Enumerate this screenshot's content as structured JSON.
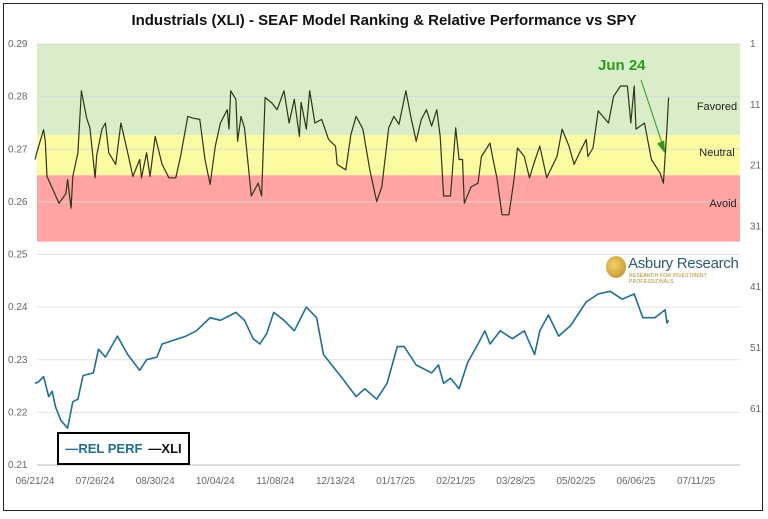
{
  "chart_data": {
    "type": "line",
    "title": "Industrials (XLI) - SEAF Model Ranking & Relative Performance vs SPY",
    "x_ticks": [
      "06/21/24",
      "07/26/24",
      "08/30/24",
      "10/04/24",
      "11/08/24",
      "12/13/24",
      "01/17/25",
      "02/21/25",
      "03/28/25",
      "05/02/25",
      "06/06/25",
      "07/11/25"
    ],
    "x_range": [
      "2024-06-21",
      "2025-07-11"
    ],
    "y_left": {
      "range": [
        0.21,
        0.29
      ],
      "ticks": [
        "0.21",
        "0.22",
        "0.23",
        "0.24",
        "0.25",
        "0.26",
        "0.27",
        "0.28",
        "0.29"
      ]
    },
    "y_right": {
      "range": [
        1,
        69
      ],
      "inverted": true,
      "ticks": [
        "1",
        "11",
        "21",
        "31",
        "41",
        "51",
        "61"
      ]
    },
    "grid": true,
    "legend_position": "bottom-left",
    "bands": [
      {
        "label": "Favored",
        "from_rank": 1,
        "to_rank": 16,
        "color": "#d8edc8"
      },
      {
        "label": "Neutral",
        "from_rank": 16,
        "to_rank": 22.6,
        "color": "#fdfba0"
      },
      {
        "label": "Avoid",
        "from_rank": 22.6,
        "to_rank": 33.5,
        "color": "#ffa3a3"
      }
    ],
    "annotation": {
      "text": "Jun 24",
      "date": "2025-06-23",
      "color": "#2c9a1e"
    },
    "series": [
      {
        "name": "REL PERF",
        "axis": "left",
        "color": "#1f6e96",
        "points": [
          [
            "2024-06-21",
            0.2255
          ],
          [
            "2024-06-23",
            0.2258
          ],
          [
            "2024-06-26",
            0.2268
          ],
          [
            "2024-06-29",
            0.223
          ],
          [
            "2024-07-01",
            0.224
          ],
          [
            "2024-07-03",
            0.221
          ],
          [
            "2024-07-06",
            0.2185
          ],
          [
            "2024-07-10",
            0.217
          ],
          [
            "2024-07-13",
            0.222
          ],
          [
            "2024-07-16",
            0.2225
          ],
          [
            "2024-07-19",
            0.227
          ],
          [
            "2024-07-25",
            0.2275
          ],
          [
            "2024-07-28",
            0.232
          ],
          [
            "2024-08-01",
            0.2305
          ],
          [
            "2024-08-08",
            0.2345
          ],
          [
            "2024-08-14",
            0.231
          ],
          [
            "2024-08-21",
            0.228
          ],
          [
            "2024-08-25",
            0.23
          ],
          [
            "2024-08-31",
            0.2305
          ],
          [
            "2024-09-03",
            0.233
          ],
          [
            "2024-09-08",
            0.2335
          ],
          [
            "2024-09-17",
            0.2345
          ],
          [
            "2024-09-23",
            0.2355
          ],
          [
            "2024-10-01",
            0.238
          ],
          [
            "2024-10-07",
            0.2375
          ],
          [
            "2024-10-16",
            0.239
          ],
          [
            "2024-10-21",
            0.2375
          ],
          [
            "2024-10-26",
            0.234
          ],
          [
            "2024-10-30",
            0.233
          ],
          [
            "2024-11-03",
            0.235
          ],
          [
            "2024-11-07",
            0.239
          ],
          [
            "2024-11-13",
            0.2375
          ],
          [
            "2024-11-19",
            0.2355
          ],
          [
            "2024-11-26",
            0.24
          ],
          [
            "2024-12-02",
            0.238
          ],
          [
            "2024-12-06",
            0.231
          ],
          [
            "2024-12-12",
            0.2285
          ],
          [
            "2024-12-17",
            0.2265
          ],
          [
            "2024-12-25",
            0.223
          ],
          [
            "2024-12-30",
            0.2245
          ],
          [
            "2025-01-06",
            0.2225
          ],
          [
            "2025-01-12",
            0.2255
          ],
          [
            "2025-01-18",
            0.2325
          ],
          [
            "2025-01-22",
            0.2325
          ],
          [
            "2025-01-29",
            0.229
          ],
          [
            "2025-02-07",
            0.2275
          ],
          [
            "2025-02-11",
            0.229
          ],
          [
            "2025-02-14",
            0.2255
          ],
          [
            "2025-02-18",
            0.2265
          ],
          [
            "2025-02-23",
            0.2245
          ],
          [
            "2025-02-28",
            0.2295
          ],
          [
            "2025-03-06",
            0.233
          ],
          [
            "2025-03-10",
            0.2355
          ],
          [
            "2025-03-13",
            0.233
          ],
          [
            "2025-03-19",
            0.2355
          ],
          [
            "2025-03-26",
            0.234
          ],
          [
            "2025-04-02",
            0.2355
          ],
          [
            "2025-04-08",
            0.231
          ],
          [
            "2025-04-11",
            0.2355
          ],
          [
            "2025-04-16",
            0.2385
          ],
          [
            "2025-04-22",
            0.2345
          ],
          [
            "2025-04-29",
            0.2365
          ],
          [
            "2025-05-08",
            0.241
          ],
          [
            "2025-05-15",
            0.2425
          ],
          [
            "2025-05-22",
            0.243
          ],
          [
            "2025-05-29",
            0.2415
          ],
          [
            "2025-06-05",
            0.2425
          ],
          [
            "2025-06-10",
            0.238
          ],
          [
            "2025-06-17",
            0.238
          ],
          [
            "2025-06-23",
            0.2395
          ],
          [
            "2025-06-24",
            0.237
          ],
          [
            "2025-06-25",
            0.2375
          ]
        ]
      },
      {
        "name": "XLI",
        "axis": "right",
        "color": "#2e3518",
        "points": [
          [
            "2024-06-21",
            20
          ],
          [
            "2024-06-22",
            18.9
          ],
          [
            "2024-06-26",
            15.1
          ],
          [
            "2024-06-27",
            17
          ],
          [
            "2024-06-28",
            22.8
          ],
          [
            "2024-07-05",
            27.2
          ],
          [
            "2024-07-09",
            25.6
          ],
          [
            "2024-07-10",
            23.3
          ],
          [
            "2024-07-12",
            28
          ],
          [
            "2024-07-13",
            22.8
          ],
          [
            "2024-07-16",
            18.9
          ],
          [
            "2024-07-18",
            8.7
          ],
          [
            "2024-07-21",
            13.1
          ],
          [
            "2024-07-23",
            14.8
          ],
          [
            "2024-07-26",
            23
          ],
          [
            "2024-07-27",
            19.2
          ],
          [
            "2024-07-30",
            15
          ],
          [
            "2024-08-01",
            14
          ],
          [
            "2024-08-03",
            18.9
          ],
          [
            "2024-08-07",
            20.8
          ],
          [
            "2024-08-10",
            14
          ],
          [
            "2024-08-14",
            18.9
          ],
          [
            "2024-08-17",
            22.8
          ],
          [
            "2024-08-21",
            20
          ],
          [
            "2024-08-22",
            23
          ],
          [
            "2024-08-25",
            18.9
          ],
          [
            "2024-08-27",
            22.8
          ],
          [
            "2024-08-30",
            16.2
          ],
          [
            "2024-09-03",
            20.8
          ],
          [
            "2024-09-07",
            23
          ],
          [
            "2024-09-11",
            23
          ],
          [
            "2024-09-14",
            19.2
          ],
          [
            "2024-09-18",
            12.9
          ],
          [
            "2024-09-21",
            13.2
          ],
          [
            "2024-09-25",
            13.4
          ],
          [
            "2024-09-28",
            20
          ],
          [
            "2024-10-01",
            24.1
          ],
          [
            "2024-10-04",
            17.8
          ],
          [
            "2024-10-07",
            14
          ],
          [
            "2024-10-11",
            11.8
          ],
          [
            "2024-10-12",
            15
          ],
          [
            "2024-10-13",
            8.7
          ],
          [
            "2024-10-16",
            10.1
          ],
          [
            "2024-10-17",
            17
          ],
          [
            "2024-10-19",
            12.9
          ],
          [
            "2024-10-21",
            14.8
          ],
          [
            "2024-10-25",
            26
          ],
          [
            "2024-10-29",
            23.9
          ],
          [
            "2024-10-31",
            26
          ],
          [
            "2024-11-02",
            9.8
          ],
          [
            "2024-11-06",
            10.7
          ],
          [
            "2024-11-09",
            11.8
          ],
          [
            "2024-11-13",
            8.7
          ],
          [
            "2024-11-16",
            14
          ],
          [
            "2024-11-19",
            10.1
          ],
          [
            "2024-11-22",
            16.2
          ],
          [
            "2024-11-23",
            10.6
          ],
          [
            "2024-11-26",
            15
          ],
          [
            "2024-11-28",
            8.7
          ],
          [
            "2024-12-01",
            14
          ],
          [
            "2024-12-05",
            13.4
          ],
          [
            "2024-12-09",
            16.7
          ],
          [
            "2024-12-13",
            17.8
          ],
          [
            "2024-12-14",
            20.8
          ],
          [
            "2024-12-19",
            21.7
          ],
          [
            "2024-12-22",
            15.9
          ],
          [
            "2024-12-25",
            12.9
          ],
          [
            "2024-12-29",
            15
          ],
          [
            "2025-01-02",
            21.7
          ],
          [
            "2025-01-06",
            26.9
          ],
          [
            "2025-01-09",
            24.5
          ],
          [
            "2025-01-13",
            14.8
          ],
          [
            "2025-01-16",
            12.9
          ],
          [
            "2025-01-19",
            14.2
          ],
          [
            "2025-01-23",
            8.7
          ],
          [
            "2025-01-26",
            13.1
          ],
          [
            "2025-01-29",
            17
          ],
          [
            "2025-02-01",
            13.4
          ],
          [
            "2025-02-04",
            11.8
          ],
          [
            "2025-02-07",
            14.5
          ],
          [
            "2025-02-10",
            11.8
          ],
          [
            "2025-02-12",
            16.2
          ],
          [
            "2025-02-14",
            26
          ],
          [
            "2025-02-18",
            26
          ],
          [
            "2025-02-21",
            14.8
          ],
          [
            "2025-02-23",
            20
          ],
          [
            "2025-02-25",
            20
          ],
          [
            "2025-02-26",
            27.2
          ],
          [
            "2025-03-02",
            24.5
          ],
          [
            "2025-03-06",
            23.9
          ],
          [
            "2025-03-08",
            19.5
          ],
          [
            "2025-03-13",
            17.3
          ],
          [
            "2025-03-15",
            20.3
          ],
          [
            "2025-03-17",
            23
          ],
          [
            "2025-03-20",
            29.1
          ],
          [
            "2025-03-24",
            29.1
          ],
          [
            "2025-03-27",
            23.3
          ],
          [
            "2025-03-29",
            18.1
          ],
          [
            "2025-04-02",
            19.5
          ],
          [
            "2025-04-05",
            23
          ],
          [
            "2025-04-08",
            20.3
          ],
          [
            "2025-04-11",
            17.8
          ],
          [
            "2025-04-15",
            23
          ],
          [
            "2025-04-21",
            19.5
          ],
          [
            "2025-04-24",
            15
          ],
          [
            "2025-04-28",
            17.8
          ],
          [
            "2025-05-01",
            20.8
          ],
          [
            "2025-05-05",
            18.4
          ],
          [
            "2025-05-08",
            16.7
          ],
          [
            "2025-05-09",
            19.5
          ],
          [
            "2025-05-12",
            18.1
          ],
          [
            "2025-05-15",
            12
          ],
          [
            "2025-05-21",
            14
          ],
          [
            "2025-05-24",
            9.6
          ],
          [
            "2025-05-28",
            7.9
          ],
          [
            "2025-06-01",
            7.9
          ],
          [
            "2025-06-03",
            14
          ],
          [
            "2025-06-05",
            7.9
          ],
          [
            "2025-06-06",
            15
          ],
          [
            "2025-06-11",
            14
          ],
          [
            "2025-06-15",
            20
          ],
          [
            "2025-06-20",
            22.2
          ],
          [
            "2025-06-22",
            23.9
          ],
          [
            "2025-06-24",
            15
          ],
          [
            "2025-06-25",
            9.8
          ]
        ]
      }
    ]
  },
  "legend": {
    "items": [
      "—REL PERF",
      "—XLI"
    ]
  },
  "logo": {
    "name": "Asbury Research",
    "tagline": "RESEARCH FOR INVESTMENT PROFESSIONALS"
  }
}
